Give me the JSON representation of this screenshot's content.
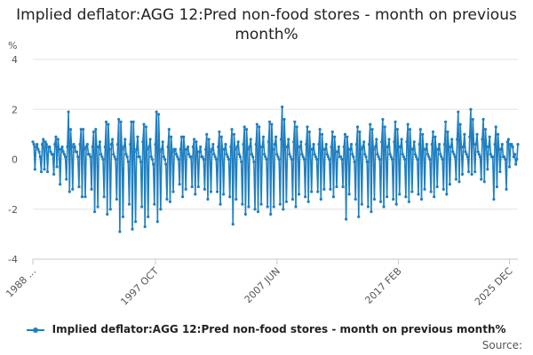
{
  "chart_data": {
    "type": "line",
    "title": "Implied deflator:AGG 12:Pred non-food stores - month on previous month%",
    "ylabel": "%",
    "xlabel": "",
    "ylim": [
      -4,
      4
    ],
    "y_ticks": [
      4,
      2,
      0,
      -2,
      -4
    ],
    "x_range": [
      "1988 JAN",
      "2025 DEC"
    ],
    "x_ticks": [
      {
        "label": "1988 ...",
        "index": 0
      },
      {
        "label": "1997 OCT",
        "index": 117
      },
      {
        "label": "2007 JUN",
        "index": 233
      },
      {
        "label": "2017 FEB",
        "index": 349
      },
      {
        "label": "2025 DEC",
        "index": 455
      }
    ],
    "grid": true,
    "legend_position": "bottom",
    "series": [
      {
        "name": "Implied deflator:AGG 12:Pred non-food stores - month on previous month%",
        "color": "#1f7fc0",
        "values": [
          0.7,
          0.6,
          -0.4,
          0.5,
          0.6,
          0.4,
          0.3,
          0.1,
          -0.5,
          0.6,
          0.8,
          -0.4,
          0.7,
          0.6,
          -0.5,
          0.5,
          0.5,
          0.3,
          0.2,
          0.2,
          -0.6,
          0.6,
          0.9,
          -0.3,
          0.8,
          0.4,
          -1.0,
          0.4,
          0.5,
          0.3,
          0.2,
          0.1,
          -0.8,
          0.5,
          1.9,
          -1.3,
          1.2,
          0.5,
          -1.2,
          0.6,
          0.5,
          0.3,
          0.3,
          0.1,
          -1.1,
          0.6,
          1.2,
          -1.5,
          1.2,
          0.4,
          -1.5,
          0.5,
          0.6,
          0.2,
          0.2,
          0.1,
          -1.2,
          0.5,
          1.1,
          -2.1,
          1.2,
          0.5,
          -1.9,
          0.5,
          0.7,
          0.2,
          0.1,
          0.0,
          -1.5,
          0.5,
          1.5,
          -2.2,
          1.4,
          0.4,
          -2.0,
          0.6,
          0.8,
          0.2,
          0.1,
          0.0,
          -1.6,
          0.6,
          1.6,
          -2.9,
          1.5,
          0.4,
          -2.3,
          0.5,
          0.8,
          0.2,
          0.1,
          -0.1,
          -1.8,
          0.6,
          1.5,
          -2.8,
          1.5,
          0.3,
          -2.5,
          0.4,
          0.9,
          0.1,
          0.1,
          -0.1,
          -1.9,
          0.7,
          1.4,
          -2.7,
          1.3,
          0.4,
          -2.3,
          0.5,
          0.8,
          0.1,
          0.0,
          -0.2,
          -1.8,
          0.6,
          1.9,
          -2.5,
          1.8,
          0.3,
          -2.0,
          0.4,
          0.7,
          0.1,
          0.0,
          -0.2,
          -1.6,
          0.5,
          1.2,
          -1.7,
          0.9,
          0.3,
          -1.3,
          0.4,
          0.4,
          0.2,
          0.1,
          0.0,
          -1.0,
          0.4,
          0.9,
          -1.5,
          0.9,
          0.4,
          -1.2,
          0.4,
          0.5,
          0.2,
          0.1,
          0.1,
          -1.1,
          0.5,
          0.8,
          -1.4,
          0.7,
          0.3,
          -1.1,
          0.3,
          0.5,
          0.1,
          0.1,
          0.0,
          -1.2,
          0.4,
          1.0,
          -1.6,
          0.8,
          0.3,
          -1.3,
          0.4,
          0.6,
          0.2,
          0.1,
          0.0,
          -1.3,
          0.5,
          1.1,
          -1.8,
          0.9,
          0.4,
          -1.4,
          0.4,
          0.6,
          0.2,
          0.1,
          0.0,
          -1.5,
          0.5,
          1.2,
          -2.6,
          1.0,
          0.4,
          -1.6,
          0.5,
          0.7,
          0.2,
          0.1,
          -0.1,
          -1.8,
          0.6,
          1.3,
          -2.2,
          1.2,
          0.4,
          -1.9,
          0.5,
          0.8,
          0.2,
          0.1,
          -0.1,
          -2.0,
          0.6,
          1.4,
          -2.1,
          1.3,
          0.5,
          -1.8,
          0.5,
          0.9,
          0.2,
          0.1,
          0.0,
          -1.9,
          0.7,
          1.5,
          -2.2,
          1.4,
          0.4,
          -1.9,
          0.6,
          0.9,
          0.2,
          0.1,
          0.0,
          -1.8,
          0.8,
          2.1,
          -2.0,
          1.6,
          0.5,
          -1.7,
          0.5,
          0.8,
          0.2,
          0.1,
          0.0,
          -1.6,
          0.7,
          1.5,
          -1.9,
          1.3,
          0.5,
          -1.4,
          0.5,
          0.7,
          0.2,
          0.1,
          0.0,
          -1.5,
          0.6,
          1.3,
          -1.7,
          1.1,
          0.4,
          -1.3,
          0.4,
          0.6,
          0.2,
          0.1,
          0.0,
          -1.3,
          0.6,
          1.2,
          -1.6,
          1.0,
          0.4,
          -1.2,
          0.4,
          0.6,
          0.2,
          0.1,
          0.0,
          -1.2,
          0.5,
          1.1,
          -1.5,
          0.9,
          0.3,
          -1.1,
          0.3,
          0.5,
          0.1,
          0.1,
          0.0,
          -1.1,
          0.5,
          1.0,
          -2.4,
          0.9,
          0.4,
          -1.4,
          0.4,
          0.6,
          0.2,
          0.1,
          -0.1,
          -1.6,
          0.6,
          1.3,
          -2.3,
          1.1,
          0.4,
          -1.8,
          0.5,
          0.7,
          0.2,
          0.1,
          -0.1,
          -1.9,
          0.6,
          1.4,
          -2.1,
          1.2,
          0.4,
          -1.6,
          0.5,
          0.8,
          0.2,
          0.1,
          0.0,
          -1.7,
          0.7,
          1.6,
          -1.9,
          1.3,
          0.5,
          -1.5,
          0.5,
          0.8,
          0.2,
          0.1,
          0.0,
          -1.6,
          0.7,
          1.5,
          -1.8,
          1.2,
          0.5,
          -1.4,
          0.5,
          0.8,
          0.2,
          0.1,
          0.0,
          -1.5,
          0.7,
          1.4,
          -1.7,
          1.2,
          0.4,
          -1.3,
          0.4,
          0.7,
          0.2,
          0.1,
          0.0,
          -1.4,
          0.6,
          1.2,
          -1.6,
          1.0,
          0.4,
          -1.2,
          0.4,
          0.6,
          0.2,
          0.1,
          0.0,
          -1.3,
          0.6,
          1.1,
          -1.5,
          0.9,
          0.4,
          -1.1,
          0.4,
          0.6,
          0.2,
          0.1,
          0.0,
          -1.2,
          0.6,
          1.5,
          -1.4,
          1.1,
          0.5,
          -1.0,
          0.5,
          0.8,
          0.3,
          0.2,
          0.1,
          -0.8,
          0.8,
          1.9,
          -0.9,
          1.4,
          0.5,
          -0.6,
          0.5,
          1.0,
          0.3,
          0.2,
          0.1,
          -0.5,
          0.9,
          2.0,
          -0.6,
          1.6,
          0.6,
          -0.5,
          0.6,
          1.0,
          0.3,
          0.2,
          0.1,
          -0.8,
          0.8,
          1.6,
          -0.9,
          1.2,
          0.5,
          -0.4,
          0.5,
          0.9,
          0.2,
          0.1,
          0.1,
          -1.6,
          0.6,
          1.3,
          -1.1,
          1.0,
          0.4,
          -0.5,
          0.4,
          0.6,
          0.1,
          0.1,
          0.0,
          -1.2,
          0.7,
          0.8,
          -0.3,
          0.6,
          0.6,
          0.5,
          0.1,
          0.2,
          -0.2,
          0.0,
          0.6
        ]
      }
    ]
  },
  "title": "Implied deflator:AGG 12:Pred non-food stores - month on previous month%",
  "legend": {
    "label": "Implied deflator:AGG 12:Pred non-food stores - month on previous month%"
  },
  "source_label": "Source:",
  "colors": {
    "series": "#1f7fc0",
    "grid": "#e3e3e3",
    "axis": "#c9c9c9"
  }
}
